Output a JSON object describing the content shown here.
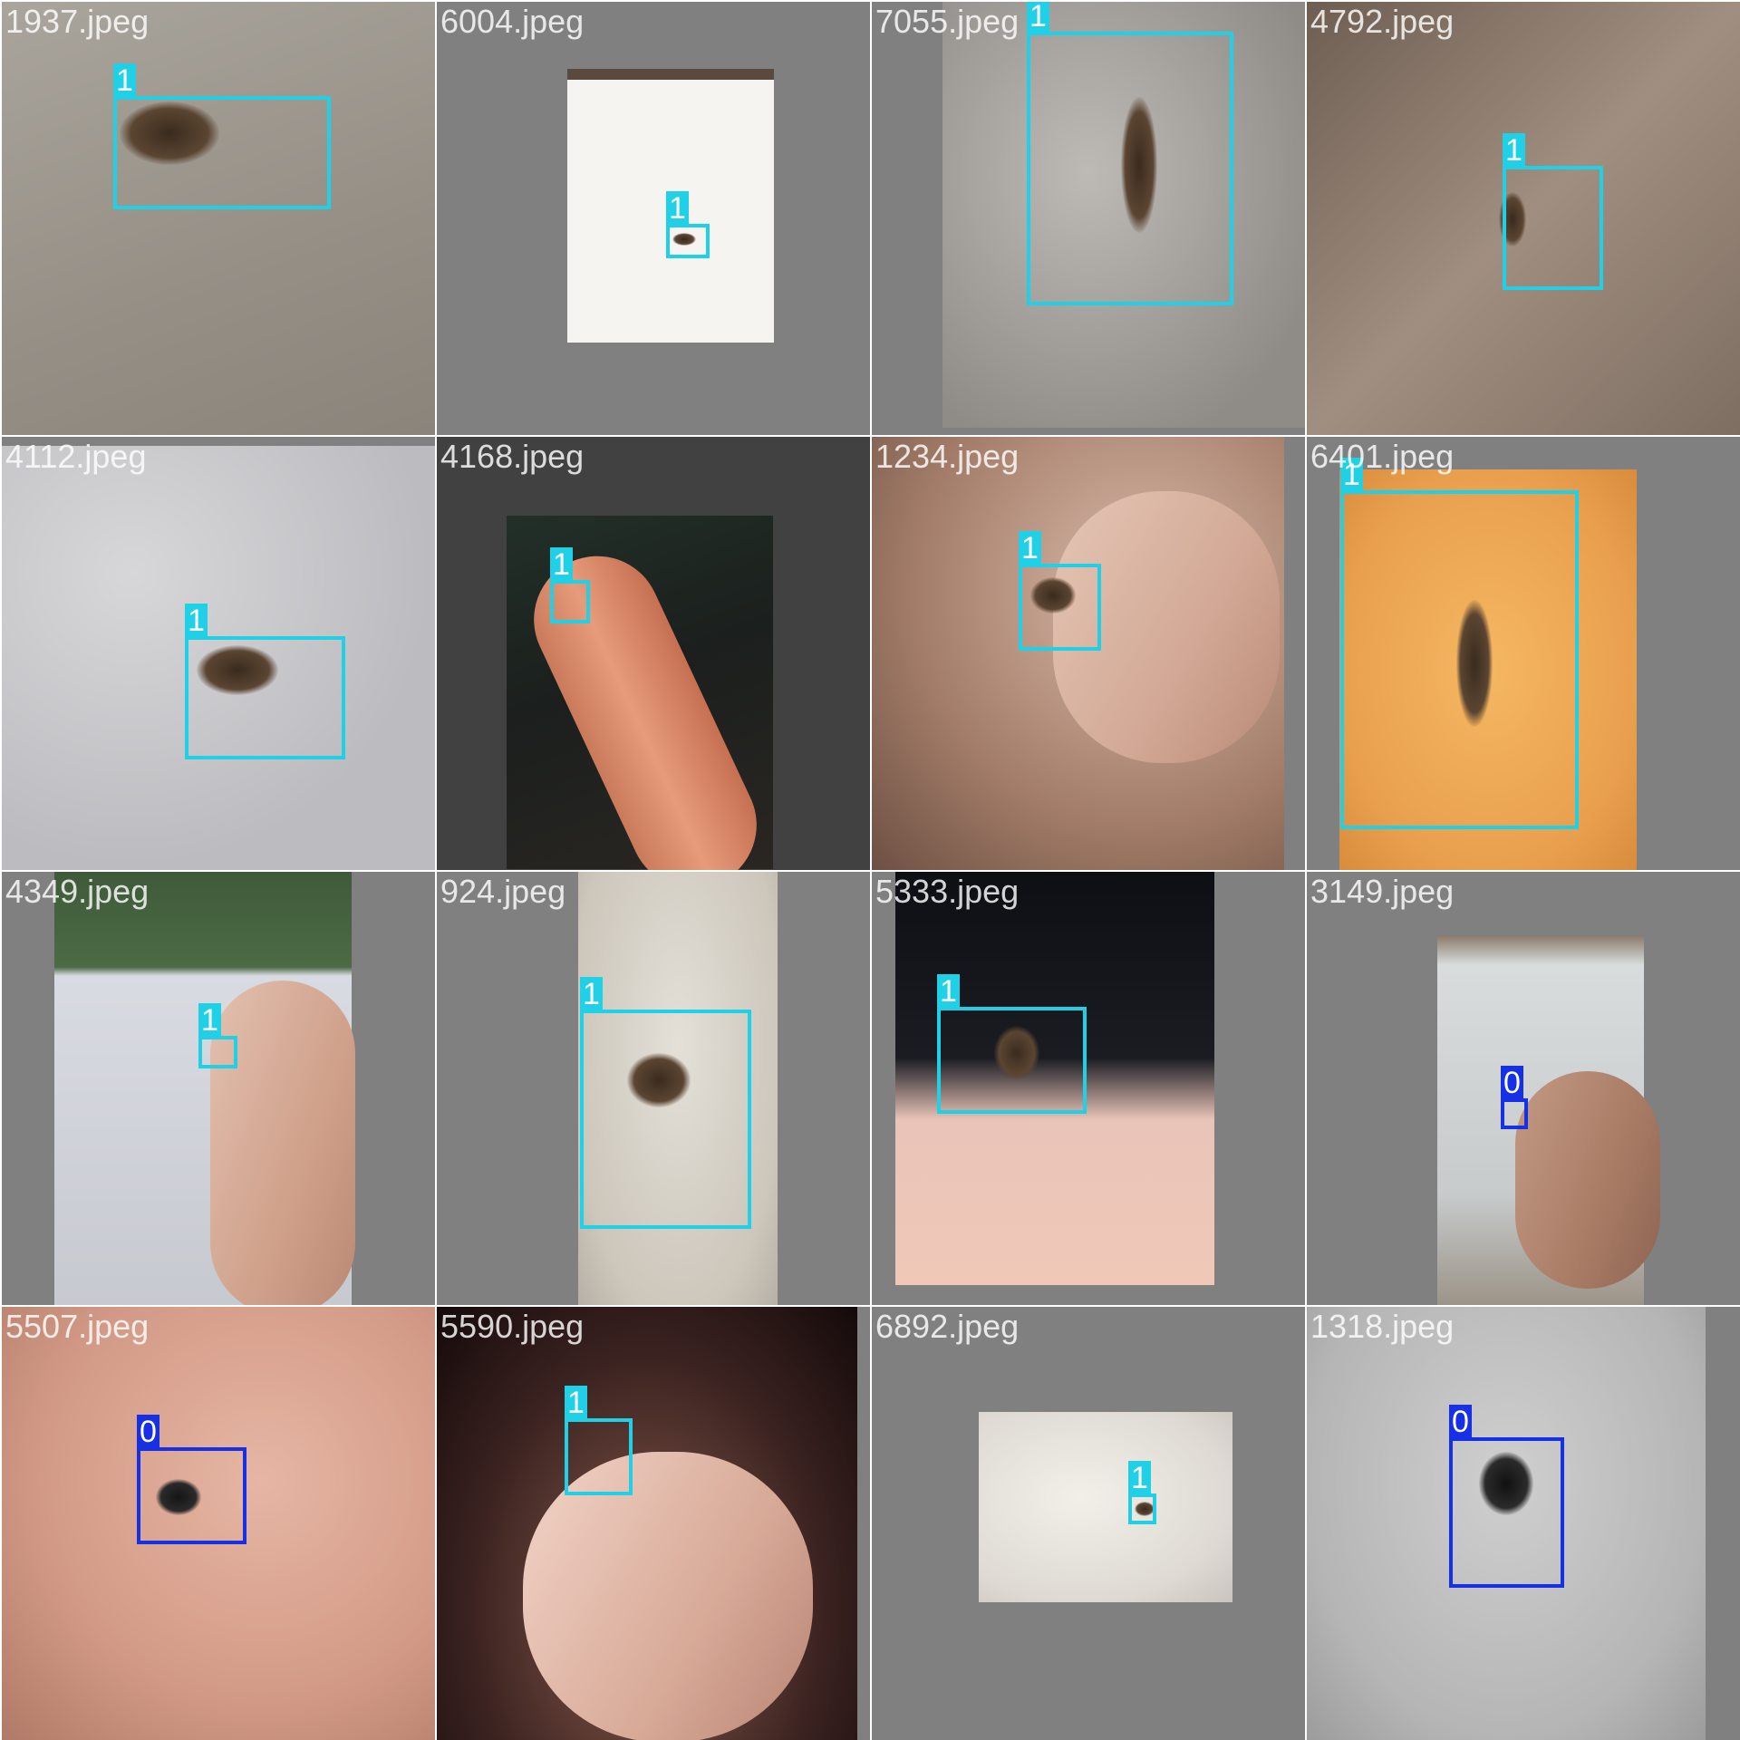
{
  "mosaic": {
    "colors": {
      "class_1": "#1fd0e6",
      "class_0": "#1630e6",
      "label_text": "#ffffff",
      "padding_gray": "#808080"
    },
    "tiles": [
      {
        "filename": "1937.jpeg",
        "scene": "mosquito on beige fabric",
        "labels": [
          "1"
        ]
      },
      {
        "filename": "6004.jpeg",
        "scene": "small mosquito on white paper",
        "labels": [
          "1"
        ]
      },
      {
        "filename": "7055.jpeg",
        "scene": "mosquito on textured wall",
        "labels": [
          "1"
        ]
      },
      {
        "filename": "4792.jpeg",
        "scene": "mosquito on wooden surface",
        "labels": [
          "1"
        ]
      },
      {
        "filename": "4112.jpeg",
        "scene": "mosquito on grey fabric",
        "labels": [
          "1"
        ]
      },
      {
        "filename": "4168.jpeg",
        "scene": "mosquito on fingertip",
        "labels": [
          "1"
        ]
      },
      {
        "filename": "1234.jpeg",
        "scene": "mosquito held between fingers",
        "labels": [
          "1"
        ]
      },
      {
        "filename": "6401.jpeg",
        "scene": "mosquito on orange wall",
        "labels": [
          "1"
        ]
      },
      {
        "filename": "4349.jpeg",
        "scene": "mosquito held in hand outdoors",
        "labels": [
          "1"
        ]
      },
      {
        "filename": "924.jpeg",
        "scene": "mosquito on cracked white surface",
        "labels": [
          "1"
        ]
      },
      {
        "filename": "5333.jpeg",
        "scene": "mosquito on fingertip",
        "labels": [
          "1"
        ]
      },
      {
        "filename": "3149.jpeg",
        "scene": "mosquito held between fingers",
        "labels": [
          "0"
        ]
      },
      {
        "filename": "5507.jpeg",
        "scene": "mosquito on hairy skin",
        "labels": [
          "0"
        ]
      },
      {
        "filename": "5590.jpeg",
        "scene": "mosquito on fingertip",
        "labels": [
          "1"
        ]
      },
      {
        "filename": "6892.jpeg",
        "scene": "small mosquito on white surface",
        "labels": [
          "1"
        ]
      },
      {
        "filename": "1318.jpeg",
        "scene": "striped mosquito on white wall",
        "labels": [
          "0"
        ]
      }
    ]
  }
}
